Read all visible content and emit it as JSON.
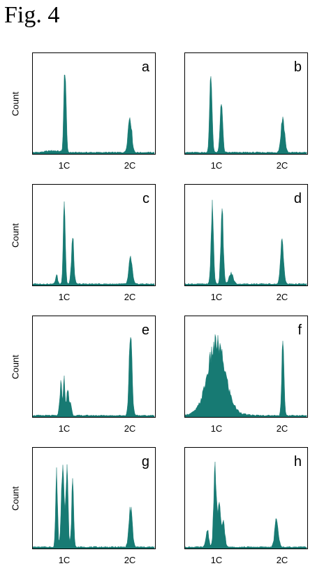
{
  "figure": {
    "title": "Fig. 4"
  },
  "colors": {
    "fill": "#177a73",
    "axis": "#000000"
  },
  "chart_data": [
    {
      "type": "area",
      "panel": "a",
      "ylabel": "Count",
      "x_tick_labels": [
        "1C",
        "2C"
      ],
      "grid": false,
      "peaks": [
        {
          "x": "1C",
          "rel_height": 1.0,
          "width": "narrow"
        },
        {
          "x": "2C",
          "rel_height": 0.42,
          "width": "narrow"
        }
      ]
    },
    {
      "type": "area",
      "panel": "b",
      "ylabel": "",
      "x_tick_labels": [
        "1C",
        "2C"
      ],
      "grid": false,
      "peaks": [
        {
          "x": "below 1C",
          "rel_height": 0.88
        },
        {
          "x": "above 1C",
          "rel_height": 0.62
        },
        {
          "x": "2C",
          "rel_height": 0.4
        }
      ]
    },
    {
      "type": "area",
      "panel": "c",
      "ylabel": "Count",
      "x_tick_labels": [
        "1C",
        "2C"
      ],
      "grid": false,
      "peaks": [
        {
          "x": "1C",
          "rel_height": 1.0
        },
        {
          "x": "above 1C",
          "rel_height": 0.52
        },
        {
          "x": "below 1C",
          "rel_height": 0.1
        },
        {
          "x": "2C",
          "rel_height": 0.3
        }
      ]
    },
    {
      "type": "area",
      "panel": "d",
      "ylabel": "",
      "x_tick_labels": [
        "1C",
        "2C"
      ],
      "grid": false,
      "peaks": [
        {
          "x": "below 1C",
          "rel_height": 0.88
        },
        {
          "x": "above 1C",
          "rel_height": 0.92
        },
        {
          "x": "2C",
          "rel_height": 0.52
        }
      ]
    },
    {
      "type": "area",
      "panel": "e",
      "ylabel": "Count",
      "x_tick_labels": [
        "1C",
        "2C"
      ],
      "grid": false,
      "peaks": [
        {
          "x": "near 1C (cluster)",
          "rel_height": 0.42
        },
        {
          "x": "2C",
          "rel_height": 1.0
        }
      ]
    },
    {
      "type": "area",
      "panel": "f",
      "ylabel": "",
      "x_tick_labels": [
        "1C",
        "2C"
      ],
      "grid": false,
      "peaks": [
        {
          "x": "1C (broad)",
          "rel_height": 0.72
        },
        {
          "x": "2C",
          "rel_height": 0.88
        }
      ]
    },
    {
      "type": "area",
      "panel": "g",
      "ylabel": "Count",
      "x_tick_labels": [
        "1C",
        "2C"
      ],
      "grid": false,
      "peaks": [
        {
          "x": "below 1C",
          "rel_height": 0.85
        },
        {
          "x": "1C",
          "rel_height": 1.0
        },
        {
          "x": "above 1C",
          "rel_height": 0.75
        },
        {
          "x": "2C",
          "rel_height": 0.45
        }
      ]
    },
    {
      "type": "area",
      "panel": "h",
      "ylabel": "",
      "x_tick_labels": [
        "1C",
        "2C"
      ],
      "grid": false,
      "peaks": [
        {
          "x": "1C",
          "rel_height": 0.88
        },
        {
          "x": "above 1C",
          "rel_height": 0.45
        },
        {
          "x": "2C",
          "rel_height": 0.32
        }
      ]
    }
  ]
}
